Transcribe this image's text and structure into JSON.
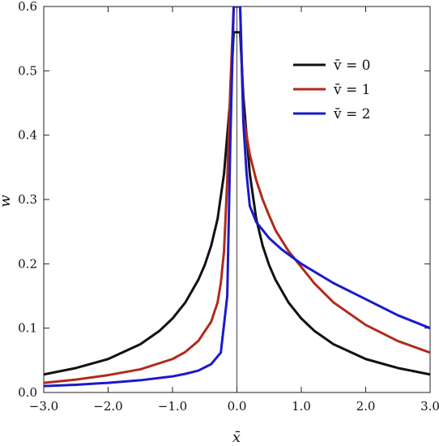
{
  "chart_data": {
    "type": "line",
    "title": "",
    "xlabel": "x̄",
    "ylabel": "w̄",
    "xlim": [
      -3.0,
      3.0
    ],
    "ylim": [
      0.0,
      0.6
    ],
    "x_ticks": [
      -3.0,
      -2.0,
      -1.0,
      0.0,
      1.0,
      2.0,
      3.0
    ],
    "x_tick_labels": [
      "−3.0",
      "−2.0",
      "−1.0",
      "0.0",
      "1.0",
      "2.0",
      "3.0"
    ],
    "y_ticks": [
      0.0,
      0.1,
      0.2,
      0.3,
      0.4,
      0.5,
      0.6
    ],
    "y_tick_labels": [
      "0.0",
      "0.1",
      "0.2",
      "0.3",
      "0.4",
      "0.5",
      "0.6"
    ],
    "grid": false,
    "legend_position": "top-right",
    "vertical_line_x": 0.0,
    "series": [
      {
        "name": "v̄ = 0",
        "color": "#111111",
        "x": [
          -3.0,
          -2.5,
          -2.0,
          -1.5,
          -1.2,
          -1.0,
          -0.8,
          -0.6,
          -0.5,
          -0.4,
          -0.3,
          -0.2,
          -0.1,
          -0.05,
          0.05,
          0.1,
          0.2,
          0.3,
          0.4,
          0.5,
          0.6,
          0.8,
          1.0,
          1.2,
          1.5,
          2.0,
          2.5,
          3.0
        ],
        "y": [
          0.028,
          0.038,
          0.052,
          0.075,
          0.096,
          0.115,
          0.14,
          0.175,
          0.198,
          0.228,
          0.27,
          0.34,
          0.46,
          0.56,
          0.56,
          0.46,
          0.34,
          0.27,
          0.228,
          0.198,
          0.175,
          0.14,
          0.115,
          0.096,
          0.075,
          0.052,
          0.038,
          0.028
        ]
      },
      {
        "name": "v̄ = 1",
        "color": "#b22a1a",
        "x": [
          -3.0,
          -2.5,
          -2.0,
          -1.5,
          -1.0,
          -0.8,
          -0.6,
          -0.4,
          -0.3,
          -0.25,
          -0.2,
          -0.15,
          -0.1,
          -0.05,
          0.05,
          0.1,
          0.2,
          0.3,
          0.4,
          0.5,
          0.6,
          0.8,
          1.0,
          1.2,
          1.5,
          2.0,
          2.5,
          3.0
        ],
        "y": [
          0.015,
          0.02,
          0.027,
          0.036,
          0.052,
          0.063,
          0.08,
          0.11,
          0.14,
          0.17,
          0.22,
          0.33,
          0.48,
          0.6,
          0.6,
          0.43,
          0.37,
          0.33,
          0.3,
          0.275,
          0.252,
          0.22,
          0.195,
          0.17,
          0.14,
          0.105,
          0.08,
          0.062
        ]
      },
      {
        "name": "v̄ = 2",
        "color": "#1a1acc",
        "x": [
          -3.0,
          -2.5,
          -2.0,
          -1.5,
          -1.0,
          -0.8,
          -0.6,
          -0.4,
          -0.25,
          -0.15,
          -0.1,
          -0.05,
          0.0,
          0.05,
          0.1,
          0.15,
          0.2,
          0.3,
          0.5,
          0.7,
          1.0,
          1.5,
          2.0,
          2.5,
          3.0
        ],
        "y": [
          0.01,
          0.012,
          0.015,
          0.019,
          0.025,
          0.029,
          0.034,
          0.044,
          0.062,
          0.15,
          0.4,
          0.6,
          0.6,
          0.6,
          0.42,
          0.34,
          0.29,
          0.265,
          0.24,
          0.222,
          0.2,
          0.17,
          0.145,
          0.12,
          0.1
        ]
      }
    ]
  }
}
